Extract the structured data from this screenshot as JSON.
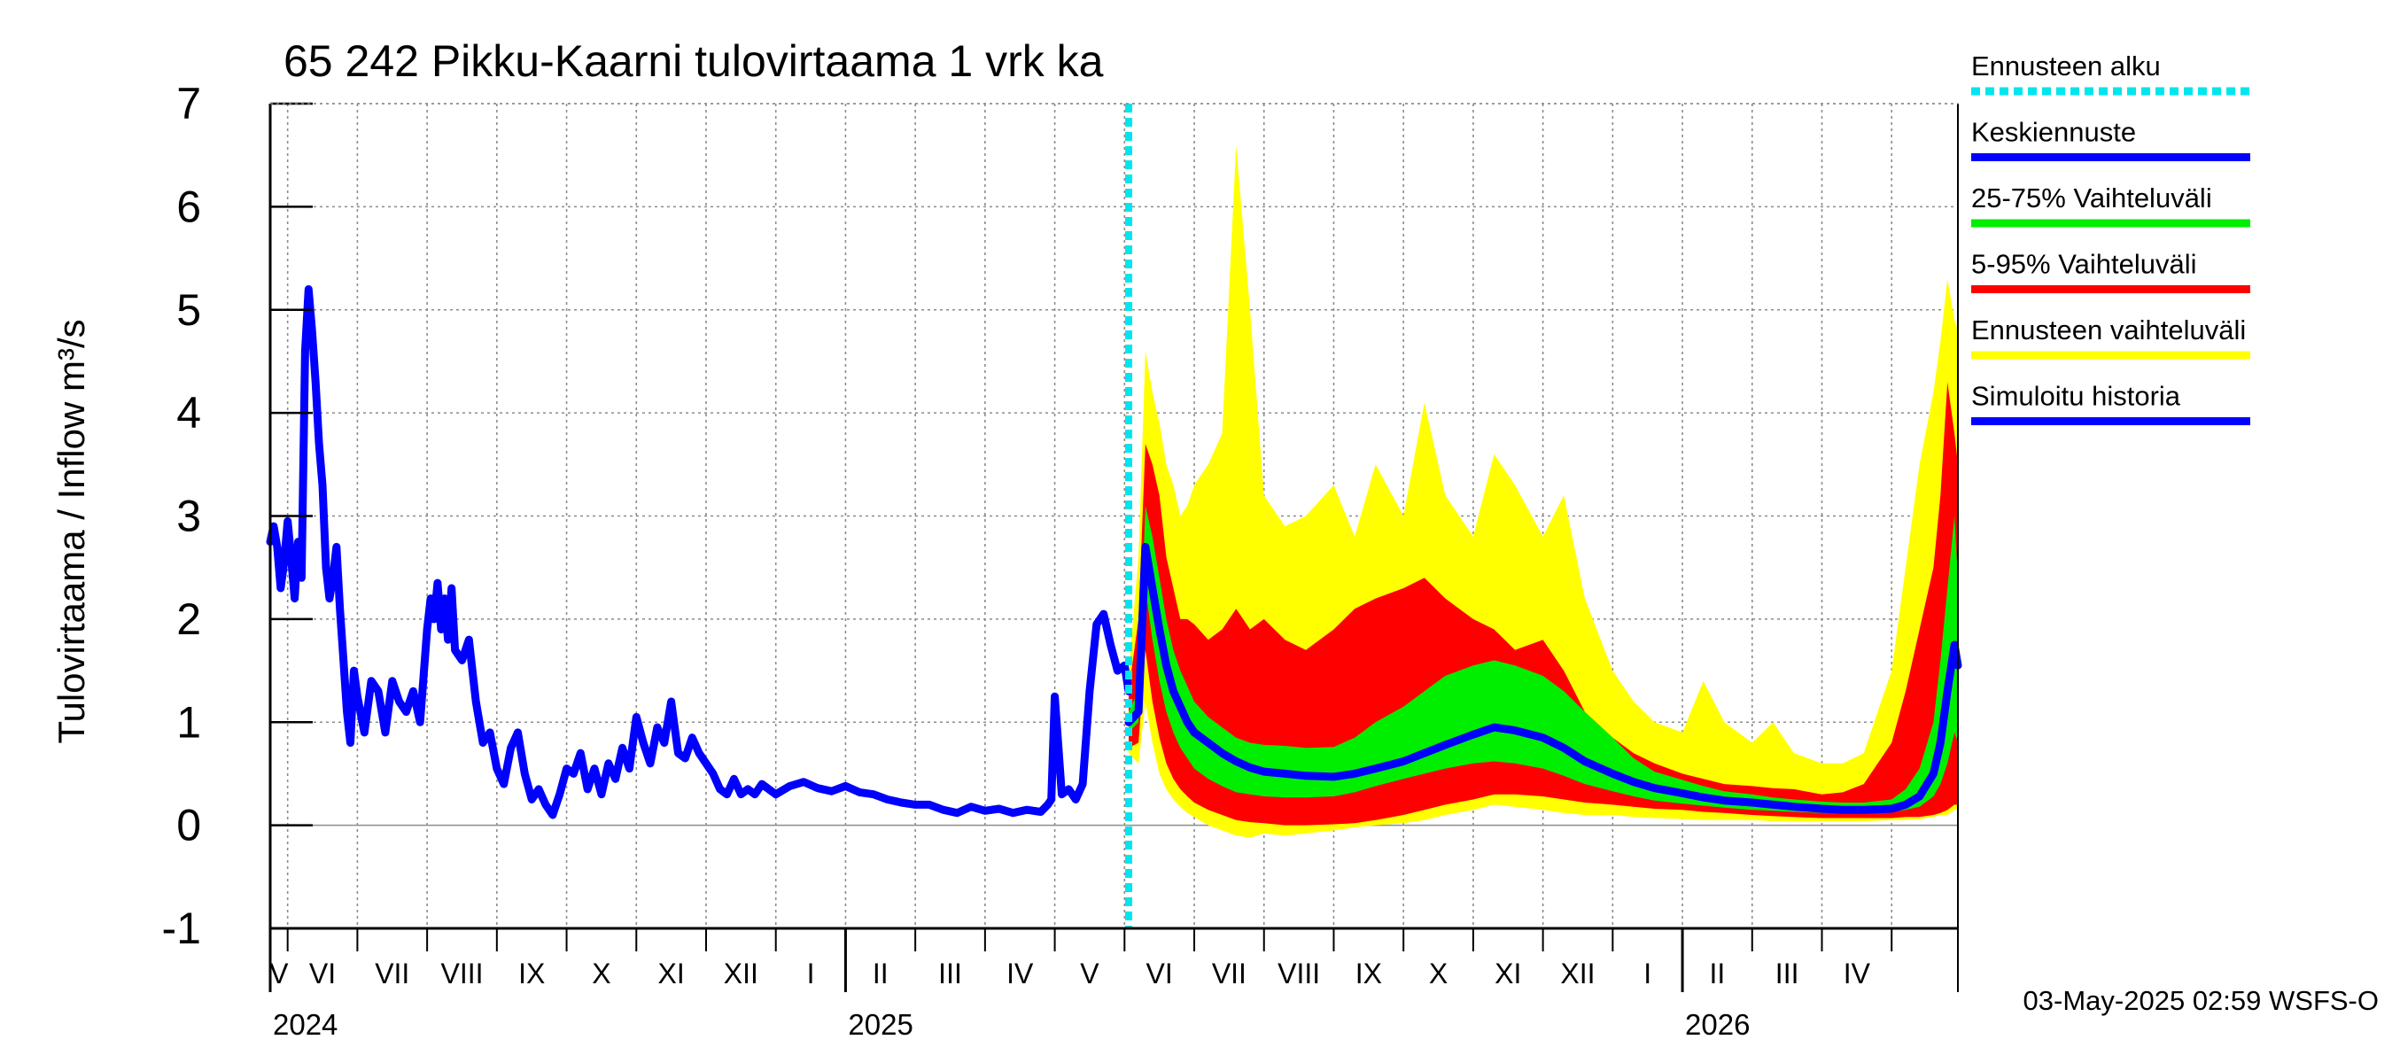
{
  "chart_data": {
    "type": "area",
    "title": "65 242 Pikku-Kaarni tulovirtaama 1 vrk ka",
    "ylabel": "Tulovirtaama / Inflow    m³/s",
    "ylim": [
      -1,
      7
    ],
    "yticks": [
      -1,
      0,
      1,
      2,
      3,
      4,
      5,
      6,
      7
    ],
    "grid": true,
    "x_unit": "month index (0 = 1 Apr 2024)",
    "xlim": [
      0.75,
      24.95
    ],
    "forecast_start": 13.06,
    "months": [
      {
        "label": "V",
        "start": 1
      },
      {
        "label": "VI",
        "start": 2
      },
      {
        "label": "VII",
        "start": 3
      },
      {
        "label": "VIII",
        "start": 4
      },
      {
        "label": "IX",
        "start": 5
      },
      {
        "label": "X",
        "start": 6
      },
      {
        "label": "XI",
        "start": 7
      },
      {
        "label": "XII",
        "start": 8
      },
      {
        "label": "I",
        "start": 9
      },
      {
        "label": "II",
        "start": 10
      },
      {
        "label": "III",
        "start": 11
      },
      {
        "label": "IV",
        "start": 12
      },
      {
        "label": "V",
        "start": 13
      },
      {
        "label": "VI",
        "start": 14
      },
      {
        "label": "VII",
        "start": 15
      },
      {
        "label": "VIII",
        "start": 16
      },
      {
        "label": "IX",
        "start": 17
      },
      {
        "label": "X",
        "start": 18
      },
      {
        "label": "XI",
        "start": 19
      },
      {
        "label": "XII",
        "start": 20
      },
      {
        "label": "I",
        "start": 21
      },
      {
        "label": "II",
        "start": 22
      },
      {
        "label": "III",
        "start": 23
      },
      {
        "label": "IV",
        "start": 24
      }
    ],
    "years": [
      {
        "label": "2024",
        "at": 0.75
      },
      {
        "label": "2025",
        "at": 9
      },
      {
        "label": "2026",
        "at": 21
      }
    ],
    "legend": {
      "forecast_start": "Ennusteen alku",
      "median": "Keskiennuste",
      "p25_75": "25-75% Vaihteluväli",
      "p5_95": "5-95% Vaihteluväli",
      "range": "Ennusteen vaihteluväli",
      "history": "Simuloitu historia"
    },
    "colors": {
      "forecast_start": "#00e5ee",
      "median": "#0000ff",
      "p25_75": "#00ee00",
      "p5_95": "#ff0000",
      "range": "#ffff00",
      "history": "#0000ff",
      "grid": "#8c8c8c"
    },
    "history": {
      "x": [
        0.75,
        0.8,
        0.85,
        0.9,
        0.95,
        1.0,
        1.05,
        1.1,
        1.15,
        1.2,
        1.25,
        1.3,
        1.35,
        1.4,
        1.45,
        1.5,
        1.55,
        1.6,
        1.65,
        1.7,
        1.75,
        1.8,
        1.85,
        1.9,
        1.95,
        2.0,
        2.1,
        2.2,
        2.3,
        2.4,
        2.5,
        2.6,
        2.7,
        2.8,
        2.9,
        3.0,
        3.05,
        3.1,
        3.15,
        3.2,
        3.25,
        3.3,
        3.35,
        3.4,
        3.5,
        3.6,
        3.7,
        3.8,
        3.9,
        4.0,
        4.1,
        4.2,
        4.3,
        4.4,
        4.5,
        4.6,
        4.7,
        4.8,
        4.9,
        5.0,
        5.1,
        5.2,
        5.3,
        5.4,
        5.5,
        5.6,
        5.7,
        5.8,
        5.9,
        6.0,
        6.1,
        6.2,
        6.3,
        6.4,
        6.5,
        6.6,
        6.7,
        6.8,
        6.9,
        7.0,
        7.1,
        7.2,
        7.3,
        7.4,
        7.5,
        7.6,
        7.7,
        7.8,
        7.9,
        8.0,
        8.2,
        8.4,
        8.6,
        8.8,
        9.0,
        9.2,
        9.4,
        9.6,
        9.8,
        10.0,
        10.2,
        10.4,
        10.6,
        10.8,
        11.0,
        11.2,
        11.4,
        11.6,
        11.8,
        11.9,
        11.95,
        12.0,
        12.1,
        12.2,
        12.3,
        12.4,
        12.5,
        12.6,
        12.7,
        12.8,
        12.9,
        13.0,
        13.06
      ],
      "y": [
        2.75,
        2.9,
        2.7,
        2.3,
        2.55,
        2.95,
        2.6,
        2.2,
        2.75,
        2.4,
        4.6,
        5.2,
        4.8,
        4.3,
        3.7,
        3.3,
        2.5,
        2.2,
        2.4,
        2.7,
        2.1,
        1.6,
        1.1,
        0.8,
        1.5,
        1.25,
        0.9,
        1.4,
        1.3,
        0.9,
        1.4,
        1.2,
        1.1,
        1.3,
        1.0,
        1.9,
        2.2,
        2.0,
        2.35,
        1.9,
        2.2,
        1.8,
        2.3,
        1.7,
        1.6,
        1.8,
        1.2,
        0.8,
        0.9,
        0.55,
        0.4,
        0.75,
        0.9,
        0.5,
        0.25,
        0.35,
        0.2,
        0.1,
        0.3,
        0.55,
        0.5,
        0.7,
        0.35,
        0.55,
        0.3,
        0.6,
        0.45,
        0.75,
        0.55,
        1.05,
        0.8,
        0.6,
        0.95,
        0.8,
        1.2,
        0.7,
        0.65,
        0.85,
        0.7,
        0.6,
        0.5,
        0.35,
        0.3,
        0.45,
        0.3,
        0.35,
        0.3,
        0.4,
        0.35,
        0.3,
        0.38,
        0.42,
        0.36,
        0.33,
        0.38,
        0.32,
        0.3,
        0.25,
        0.22,
        0.2,
        0.2,
        0.15,
        0.12,
        0.18,
        0.14,
        0.16,
        0.12,
        0.15,
        0.13,
        0.2,
        0.25,
        1.25,
        0.3,
        0.35,
        0.25,
        0.4,
        1.3,
        1.95,
        2.05,
        1.75,
        1.5,
        1.55,
        1.3
      ]
    },
    "forecast": {
      "x": [
        13.06,
        13.2,
        13.3,
        13.4,
        13.5,
        13.6,
        13.7,
        13.8,
        13.9,
        14.0,
        14.2,
        14.4,
        14.6,
        14.8,
        15.0,
        15.3,
        15.6,
        16.0,
        16.3,
        16.6,
        17.0,
        17.3,
        17.6,
        18.0,
        18.3,
        18.6,
        19.0,
        19.3,
        19.6,
        20.0,
        20.3,
        20.6,
        21.0,
        21.3,
        21.6,
        22.0,
        22.3,
        22.6,
        23.0,
        23.3,
        23.6,
        24.0,
        24.2,
        24.4,
        24.6,
        24.7,
        24.8,
        24.9,
        24.95
      ],
      "median": [
        1.0,
        1.1,
        2.7,
        2.3,
        1.9,
        1.55,
        1.3,
        1.15,
        1.0,
        0.9,
        0.8,
        0.7,
        0.62,
        0.56,
        0.52,
        0.5,
        0.48,
        0.47,
        0.5,
        0.55,
        0.62,
        0.7,
        0.78,
        0.88,
        0.95,
        0.92,
        0.85,
        0.75,
        0.62,
        0.5,
        0.42,
        0.36,
        0.31,
        0.27,
        0.24,
        0.22,
        0.2,
        0.18,
        0.16,
        0.15,
        0.15,
        0.16,
        0.2,
        0.28,
        0.5,
        0.8,
        1.3,
        1.75,
        1.55
      ],
      "p25": [
        0.9,
        1.0,
        2.3,
        1.8,
        1.4,
        1.1,
        0.9,
        0.75,
        0.65,
        0.55,
        0.45,
        0.38,
        0.32,
        0.3,
        0.28,
        0.27,
        0.27,
        0.28,
        0.32,
        0.38,
        0.45,
        0.5,
        0.55,
        0.6,
        0.62,
        0.6,
        0.55,
        0.48,
        0.4,
        0.33,
        0.28,
        0.24,
        0.21,
        0.19,
        0.17,
        0.15,
        0.14,
        0.13,
        0.12,
        0.12,
        0.12,
        0.13,
        0.15,
        0.18,
        0.28,
        0.4,
        0.6,
        0.9,
        0.8
      ],
      "p75": [
        1.1,
        1.3,
        3.1,
        2.8,
        2.4,
        2.0,
        1.7,
        1.5,
        1.35,
        1.2,
        1.05,
        0.95,
        0.85,
        0.8,
        0.78,
        0.77,
        0.75,
        0.76,
        0.85,
        1.0,
        1.15,
        1.3,
        1.45,
        1.55,
        1.6,
        1.55,
        1.45,
        1.3,
        1.1,
        0.85,
        0.65,
        0.52,
        0.44,
        0.38,
        0.33,
        0.3,
        0.27,
        0.25,
        0.23,
        0.22,
        0.22,
        0.25,
        0.35,
        0.55,
        1.0,
        1.6,
        2.3,
        3.0,
        2.4
      ],
      "p5": [
        0.75,
        0.8,
        1.7,
        1.2,
        0.85,
        0.6,
        0.45,
        0.35,
        0.28,
        0.22,
        0.15,
        0.1,
        0.05,
        0.03,
        0.02,
        0.0,
        0.0,
        0.01,
        0.02,
        0.05,
        0.1,
        0.15,
        0.2,
        0.25,
        0.3,
        0.3,
        0.28,
        0.25,
        0.22,
        0.2,
        0.18,
        0.16,
        0.15,
        0.13,
        0.12,
        0.1,
        0.09,
        0.08,
        0.07,
        0.07,
        0.07,
        0.07,
        0.08,
        0.08,
        0.1,
        0.12,
        0.15,
        0.2,
        0.2
      ],
      "p95": [
        1.3,
        2.0,
        3.7,
        3.5,
        3.2,
        2.6,
        2.3,
        2.0,
        2.0,
        1.95,
        1.8,
        1.9,
        2.1,
        1.9,
        2.0,
        1.8,
        1.7,
        1.9,
        2.1,
        2.2,
        2.3,
        2.4,
        2.2,
        2.0,
        1.9,
        1.7,
        1.8,
        1.5,
        1.1,
        0.85,
        0.7,
        0.6,
        0.5,
        0.45,
        0.4,
        0.38,
        0.36,
        0.35,
        0.3,
        0.32,
        0.4,
        0.8,
        1.3,
        1.9,
        2.5,
        3.2,
        4.3,
        3.8,
        3.5
      ],
      "min": [
        0.7,
        0.6,
        1.2,
        0.8,
        0.5,
        0.35,
        0.25,
        0.18,
        0.12,
        0.08,
        0.0,
        -0.05,
        -0.1,
        -0.12,
        -0.08,
        -0.1,
        -0.08,
        -0.05,
        -0.02,
        0.0,
        0.02,
        0.05,
        0.1,
        0.15,
        0.2,
        0.18,
        0.15,
        0.12,
        0.1,
        0.1,
        0.08,
        0.07,
        0.06,
        0.05,
        0.05,
        0.05,
        0.04,
        0.04,
        0.04,
        0.04,
        0.04,
        0.05,
        0.05,
        0.06,
        0.08,
        0.1,
        0.1,
        0.15,
        0.15
      ],
      "max": [
        1.5,
        2.6,
        4.6,
        4.2,
        3.9,
        3.5,
        3.3,
        3.0,
        3.1,
        3.3,
        3.5,
        3.8,
        6.6,
        5.0,
        3.2,
        2.9,
        3.0,
        3.3,
        2.8,
        3.5,
        3.0,
        4.1,
        3.2,
        2.8,
        3.6,
        3.3,
        2.8,
        3.2,
        2.2,
        1.5,
        1.2,
        1.0,
        0.9,
        1.4,
        1.0,
        0.8,
        1.0,
        0.7,
        0.6,
        0.6,
        0.7,
        1.5,
        2.5,
        3.5,
        4.2,
        4.7,
        5.3,
        4.9,
        4.8
      ]
    }
  },
  "timestamp": "03-May-2025 02:59 WSFS-O"
}
